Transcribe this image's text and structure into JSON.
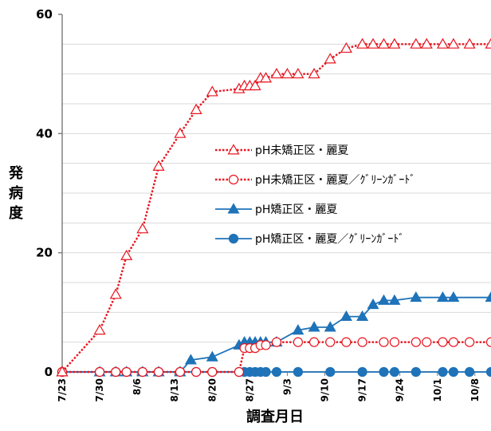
{
  "chart_data": {
    "type": "line",
    "xlabel": "調査月日",
    "ylabel": [
      "発",
      "病",
      "度"
    ],
    "ylim": [
      0,
      60
    ],
    "y_ticks": [
      "0",
      "20",
      "40",
      "60"
    ],
    "x_start": "7/23",
    "x_end": "10/11",
    "x_tick_labels": [
      "7/23",
      "7/30",
      "8/6",
      "8/13",
      "8/20",
      "8/27",
      "9/3",
      "9/10",
      "9/17",
      "9/24",
      "10/1",
      "10/8"
    ],
    "grid": "horizontal",
    "legend_position": "center-right",
    "series": [
      {
        "name": "pH未矯正区・麗夏",
        "color": "#e8141e",
        "line_style": "dotted",
        "marker": "triangle-open",
        "points": [
          [
            "7/23",
            0
          ],
          [
            "7/30",
            7
          ],
          [
            "8/2",
            13
          ],
          [
            "8/4",
            19.5
          ],
          [
            "8/7",
            24
          ],
          [
            "8/10",
            34.5
          ],
          [
            "8/14",
            40
          ],
          [
            "8/17",
            44
          ],
          [
            "8/20",
            47
          ],
          [
            "8/25",
            47.5
          ],
          [
            "8/26",
            48
          ],
          [
            "8/27",
            48
          ],
          [
            "8/28",
            48
          ],
          [
            "8/29",
            49.3
          ],
          [
            "8/30",
            49.3
          ],
          [
            "9/1",
            50
          ],
          [
            "9/3",
            50
          ],
          [
            "9/5",
            50
          ],
          [
            "9/8",
            50
          ],
          [
            "9/11",
            52.5
          ],
          [
            "9/14",
            54.3
          ],
          [
            "9/17",
            55
          ],
          [
            "9/19",
            55
          ],
          [
            "9/21",
            55
          ],
          [
            "9/23",
            55
          ],
          [
            "9/27",
            55
          ],
          [
            "9/29",
            55
          ],
          [
            "10/2",
            55
          ],
          [
            "10/4",
            55
          ],
          [
            "10/7",
            55
          ],
          [
            "10/11",
            55
          ]
        ]
      },
      {
        "name": "pH未矯正区・麗夏／ｸﾞﾘｰﾝｶﾞｰﾄﾞ",
        "color": "#e8141e",
        "line_style": "dotted",
        "marker": "circle-open",
        "points": [
          [
            "7/23",
            0
          ],
          [
            "7/30",
            0
          ],
          [
            "8/2",
            0
          ],
          [
            "8/4",
            0
          ],
          [
            "8/7",
            0
          ],
          [
            "8/10",
            0
          ],
          [
            "8/14",
            0
          ],
          [
            "8/17",
            0
          ],
          [
            "8/20",
            0
          ],
          [
            "8/25",
            0
          ],
          [
            "8/26",
            4
          ],
          [
            "8/27",
            4
          ],
          [
            "8/28",
            4
          ],
          [
            "8/29",
            4.5
          ],
          [
            "8/30",
            4.5
          ],
          [
            "9/1",
            5
          ],
          [
            "9/5",
            5
          ],
          [
            "9/8",
            5
          ],
          [
            "9/11",
            5
          ],
          [
            "9/14",
            5
          ],
          [
            "9/17",
            5
          ],
          [
            "9/21",
            5
          ],
          [
            "9/23",
            5
          ],
          [
            "9/27",
            5
          ],
          [
            "9/29",
            5
          ],
          [
            "10/2",
            5
          ],
          [
            "10/4",
            5
          ],
          [
            "10/7",
            5
          ],
          [
            "10/11",
            5
          ]
        ]
      },
      {
        "name": "pH矯正区・麗夏",
        "color": "#1f73b8",
        "line_style": "solid",
        "marker": "triangle-filled",
        "points": [
          [
            "7/23",
            0
          ],
          [
            "7/30",
            0
          ],
          [
            "8/2",
            0
          ],
          [
            "8/4",
            0
          ],
          [
            "8/7",
            0
          ],
          [
            "8/10",
            0
          ],
          [
            "8/14",
            0
          ],
          [
            "8/16",
            2
          ],
          [
            "8/20",
            2.5
          ],
          [
            "8/25",
            4.5
          ],
          [
            "8/26",
            5
          ],
          [
            "8/27",
            5
          ],
          [
            "8/28",
            5
          ],
          [
            "8/29",
            5
          ],
          [
            "8/30",
            5
          ],
          [
            "9/1",
            5
          ],
          [
            "9/5",
            7
          ],
          [
            "9/8",
            7.5
          ],
          [
            "9/11",
            7.5
          ],
          [
            "9/14",
            9.3
          ],
          [
            "9/17",
            9.3
          ],
          [
            "9/19",
            11.3
          ],
          [
            "9/21",
            12
          ],
          [
            "9/23",
            12
          ],
          [
            "9/27",
            12.5
          ],
          [
            "10/2",
            12.5
          ],
          [
            "10/4",
            12.5
          ],
          [
            "10/11",
            12.5
          ]
        ]
      },
      {
        "name": "pH矯正区・麗夏／ｸﾞﾘｰﾝｶﾞｰﾄﾞ",
        "color": "#1f73b8",
        "line_style": "solid",
        "marker": "circle-filled",
        "points": [
          [
            "7/23",
            0
          ],
          [
            "7/30",
            0
          ],
          [
            "8/2",
            0
          ],
          [
            "8/4",
            0
          ],
          [
            "8/7",
            0
          ],
          [
            "8/10",
            0
          ],
          [
            "8/14",
            0
          ],
          [
            "8/17",
            0
          ],
          [
            "8/20",
            0
          ],
          [
            "8/25",
            0
          ],
          [
            "8/26",
            0
          ],
          [
            "8/27",
            0
          ],
          [
            "8/28",
            0
          ],
          [
            "8/29",
            0
          ],
          [
            "8/30",
            0
          ],
          [
            "9/1",
            0
          ],
          [
            "9/5",
            0
          ],
          [
            "9/11",
            0
          ],
          [
            "9/17",
            0
          ],
          [
            "9/21",
            0
          ],
          [
            "9/23",
            0
          ],
          [
            "9/27",
            0
          ],
          [
            "10/2",
            0
          ],
          [
            "10/4",
            0
          ],
          [
            "10/7",
            0
          ],
          [
            "10/11",
            0
          ]
        ]
      }
    ]
  }
}
